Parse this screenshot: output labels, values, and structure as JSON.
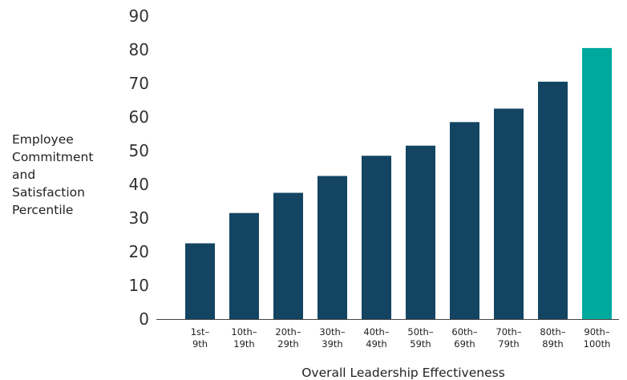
{
  "chart_data": {
    "type": "bar",
    "title": "",
    "xlabel": "Overall Leadership Effectiveness",
    "ylabel_lines": [
      "Employee",
      "Commitment",
      "and",
      "Satisfaction",
      "Percentile"
    ],
    "ylim": [
      0,
      90
    ],
    "yticks": [
      "0",
      "10",
      "20",
      "30",
      "40",
      "50",
      "60",
      "70",
      "80",
      "90"
    ],
    "grid": false,
    "categories": [
      [
        "1st–",
        "9th"
      ],
      [
        "10th–",
        "19th"
      ],
      [
        "20th–",
        "29th"
      ],
      [
        "30th–",
        "39th"
      ],
      [
        "40th–",
        "49th"
      ],
      [
        "50th–",
        "59th"
      ],
      [
        "60th–",
        "69th"
      ],
      [
        "70th–",
        "79th"
      ],
      [
        "80th–",
        "89th"
      ],
      [
        "90th–",
        "100th"
      ]
    ],
    "values": [
      22.5,
      31.5,
      37.5,
      42.5,
      48.5,
      51.5,
      58.5,
      62.5,
      70.5,
      80.5
    ],
    "colors": {
      "bar": "#134563",
      "highlight": "#00a99d",
      "axis": "#444444"
    },
    "highlight_index": 9
  }
}
